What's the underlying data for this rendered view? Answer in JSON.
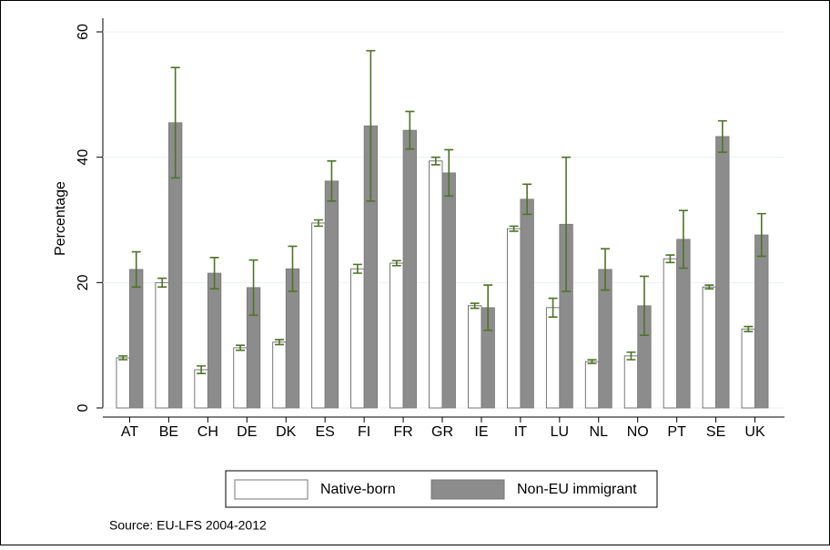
{
  "chart_data": {
    "type": "bar",
    "y_label": "Percentage",
    "source": "Source: EU-LFS 2004-2012",
    "categories": [
      "AT",
      "BE",
      "CH",
      "DE",
      "DK",
      "ES",
      "FI",
      "FR",
      "GR",
      "IE",
      "IT",
      "LU",
      "NL",
      "NO",
      "PT",
      "SE",
      "UK"
    ],
    "series": [
      {
        "name": "Native-born",
        "color": "#ffffff",
        "values": [
          8.0,
          20.0,
          6.1,
          9.6,
          10.5,
          29.5,
          22.2,
          23.1,
          39.4,
          16.3,
          28.6,
          16.0,
          7.4,
          8.3,
          23.8,
          19.3,
          12.6
        ],
        "errors": [
          0.3,
          0.7,
          0.6,
          0.4,
          0.4,
          0.5,
          0.7,
          0.4,
          0.6,
          0.4,
          0.4,
          1.5,
          0.3,
          0.6,
          0.6,
          0.3,
          0.4
        ]
      },
      {
        "name": "Non-EU immigrant",
        "color": "#8c8c8c",
        "values": [
          22.1,
          45.5,
          21.5,
          19.2,
          22.2,
          36.2,
          45.0,
          44.3,
          37.5,
          16.0,
          33.3,
          29.3,
          22.1,
          16.3,
          26.9,
          43.3,
          27.6
        ],
        "errors": [
          2.8,
          8.8,
          2.5,
          4.4,
          3.6,
          3.2,
          12.0,
          3.0,
          3.7,
          3.6,
          2.4,
          10.7,
          3.3,
          4.7,
          4.6,
          2.5,
          3.4
        ]
      }
    ],
    "error_color": "#4f7326",
    "ylim": [
      0,
      60
    ],
    "yticks": [
      0,
      20,
      40,
      60
    ],
    "grid": true
  }
}
